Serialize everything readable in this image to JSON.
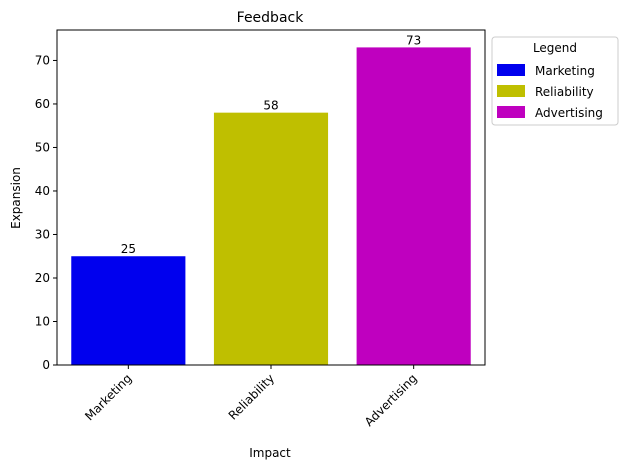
{
  "chart_data": {
    "type": "bar",
    "title": "Feedback",
    "xlabel": "Impact",
    "ylabel": "Expansion",
    "categories": [
      "Marketing",
      "Reliability",
      "Advertising"
    ],
    "values": [
      25,
      58,
      73
    ],
    "colors": [
      "#0000ee",
      "#bfbf00",
      "#bf00bf"
    ],
    "ylim": [
      0,
      77
    ],
    "yticks": [
      0,
      10,
      20,
      30,
      40,
      50,
      60,
      70
    ],
    "grid": false,
    "legend": {
      "title": "Legend",
      "placement": "outside-right-top",
      "entries": [
        "Marketing",
        "Reliability",
        "Advertising"
      ]
    }
  }
}
